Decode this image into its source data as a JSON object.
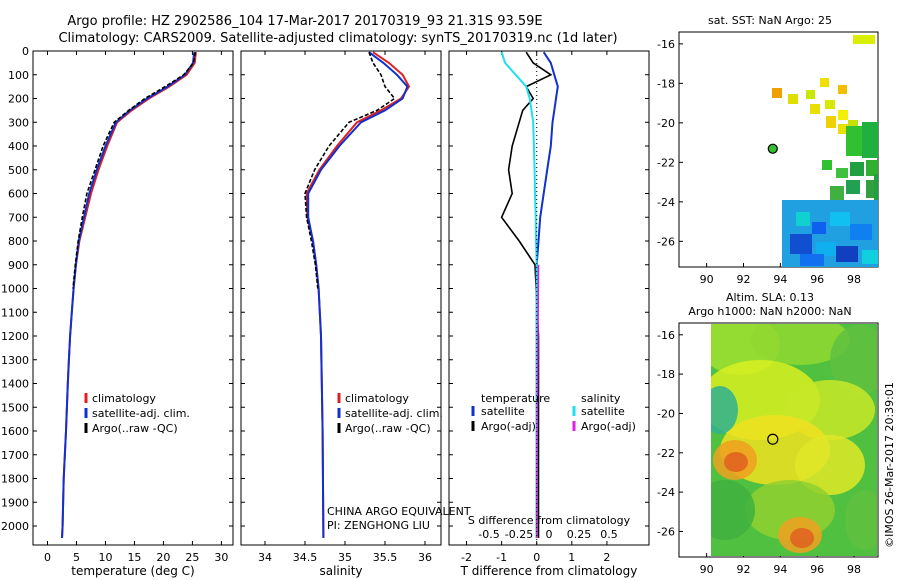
{
  "header": {
    "title_line1": "Argo profile: HZ 2902586_104 17-Mar-2017 20170319_93 21.31S 93.59E",
    "title_line2": "Climatology: CARS2009. Satellite-adjusted climatology: synTS_20170319.nc (1d later)"
  },
  "colors": {
    "climatology": "#e02020",
    "satellite": "#1030d0",
    "argo": "#000000",
    "satellite_cyan": "#20e0f0",
    "argo_adj": "#e020e0"
  },
  "chart_data": [
    {
      "type": "line",
      "name": "temperature",
      "xlabel": "temperature (deg C)",
      "xlim": [
        -2.5,
        32
      ],
      "xticks": [
        0,
        5,
        10,
        15,
        20,
        25,
        30
      ],
      "ylim": [
        2080,
        0
      ],
      "yticks": [
        0,
        100,
        200,
        300,
        400,
        500,
        600,
        700,
        800,
        900,
        1000,
        1100,
        1200,
        1300,
        1400,
        1500,
        1600,
        1700,
        1800,
        1900,
        2000
      ],
      "legend": [
        "climatology",
        "satellite-adj. clim.",
        "Argo(..raw -QC)"
      ],
      "series": [
        {
          "name": "climatology",
          "color": "#e02020",
          "x": [
            25.6,
            25.4,
            24.0,
            21.0,
            17.5,
            14.5,
            12.0,
            10.3,
            8.8,
            7.5,
            6.5,
            5.5,
            4.9,
            4.5,
            4.2,
            3.9,
            3.7,
            3.5,
            3.2,
            2.8,
            2.6,
            2.5
          ],
          "y": [
            5,
            50,
            100,
            150,
            200,
            250,
            300,
            400,
            500,
            600,
            700,
            800,
            900,
            1000,
            1100,
            1200,
            1300,
            1400,
            1600,
            1800,
            2000,
            2050
          ]
        },
        {
          "name": "satellite-adj. clim.",
          "color": "#1030d0",
          "x": [
            25.3,
            25.1,
            23.7,
            20.7,
            17.2,
            14.2,
            11.8,
            10.0,
            8.5,
            7.2,
            6.3,
            5.4,
            4.9,
            4.5,
            4.2,
            3.9,
            3.7,
            3.5,
            3.2,
            2.8,
            2.6,
            2.5
          ],
          "y": [
            5,
            50,
            100,
            150,
            200,
            250,
            300,
            400,
            500,
            600,
            700,
            800,
            900,
            1000,
            1100,
            1200,
            1300,
            1400,
            1600,
            1800,
            2000,
            2050
          ]
        },
        {
          "name": "Argo(..raw -QC)",
          "color": "#000000",
          "x": [
            25.5,
            25.2,
            23.5,
            20.3,
            16.8,
            14.0,
            11.5,
            9.6,
            8.2,
            6.8,
            6.0,
            5.3,
            4.8,
            4.4
          ],
          "y": [
            5,
            50,
            100,
            150,
            200,
            250,
            300,
            400,
            500,
            600,
            700,
            800,
            900,
            1000
          ]
        }
      ]
    },
    {
      "type": "line",
      "name": "salinity",
      "xlabel": "salinity",
      "xlim": [
        33.7,
        36.2
      ],
      "xticks": [
        34,
        34.5,
        35,
        35.5,
        36
      ],
      "xticklabels": [
        "34",
        "34.5",
        "35",
        "35.5",
        "36"
      ],
      "ylim": [
        2080,
        0
      ],
      "legend": [
        "climatology",
        "satellite-adj. clim.",
        "Argo(..raw -QC)"
      ],
      "annotation": [
        "CHINA ARGO EQUIVALENT",
        "PI: ZENGHONG LIU"
      ],
      "series": [
        {
          "name": "climatology",
          "color": "#e02020",
          "x": [
            35.35,
            35.55,
            35.72,
            35.8,
            35.7,
            35.45,
            35.15,
            34.9,
            34.68,
            34.52,
            34.53,
            34.6,
            34.64,
            34.67,
            34.7,
            34.72,
            34.73
          ],
          "y": [
            5,
            50,
            100,
            150,
            200,
            250,
            300,
            400,
            500,
            600,
            700,
            800,
            900,
            1000,
            1200,
            1600,
            2050
          ]
        },
        {
          "name": "satellite-adj. clim.",
          "color": "#1030d0",
          "x": [
            35.3,
            35.48,
            35.65,
            35.78,
            35.72,
            35.5,
            35.2,
            34.93,
            34.7,
            34.54,
            34.54,
            34.6,
            34.64,
            34.67,
            34.7,
            34.72,
            34.73
          ],
          "y": [
            5,
            50,
            100,
            150,
            200,
            250,
            300,
            400,
            500,
            600,
            700,
            800,
            900,
            1000,
            1200,
            1600,
            2050
          ]
        },
        {
          "name": "Argo(..raw -QC)",
          "color": "#000000",
          "x": [
            35.3,
            35.35,
            35.45,
            35.5,
            35.62,
            35.4,
            35.05,
            34.8,
            34.62,
            34.5,
            34.52,
            34.58,
            34.63,
            34.66
          ],
          "y": [
            5,
            50,
            100,
            150,
            200,
            250,
            300,
            400,
            500,
            600,
            700,
            800,
            900,
            1000
          ]
        }
      ]
    },
    {
      "type": "line",
      "name": "differences",
      "xlabel": "T difference from climatology",
      "xlabel_top": "S difference from climatology",
      "xlim": [
        -2.5,
        3.2
      ],
      "xticks": [
        -2,
        -1,
        0,
        1,
        2
      ],
      "xticks_top": [
        -0.5,
        -0.25,
        0,
        0.25,
        0.5
      ],
      "xticks_top_labels": [
        "-0.5",
        "-0.25",
        "0",
        "0.25",
        "0.5"
      ],
      "ylim": [
        2080,
        0
      ],
      "legend_temperature_title": "temperature",
      "legend_salinity_title": "salinity",
      "legend_temperature": [
        "satellite",
        "Argo(-adj)"
      ],
      "legend_salinity": [
        "satellite",
        "Argo(-adj)"
      ],
      "series": [
        {
          "name": "T satellite",
          "color": "#1030d0",
          "x": [
            0.2,
            0.4,
            0.5,
            0.6,
            0.55,
            0.5,
            0.45,
            0.4,
            0.3,
            0.2,
            0.1,
            0.05,
            0,
            0,
            0
          ],
          "y": [
            5,
            50,
            100,
            150,
            200,
            250,
            300,
            400,
            500,
            600,
            700,
            800,
            900,
            1200,
            2050
          ]
        },
        {
          "name": "T Argo(-adj)",
          "color": "#000000",
          "x": [
            -0.3,
            -0.1,
            0.4,
            -0.3,
            -0.1,
            -0.4,
            -0.5,
            -0.7,
            -0.8,
            -0.7,
            -1.0,
            -0.5,
            -0.05,
            0.05,
            0.05
          ],
          "y": [
            5,
            50,
            100,
            150,
            200,
            250,
            300,
            400,
            500,
            600,
            700,
            800,
            900,
            1200,
            2050
          ]
        },
        {
          "name": "S satellite",
          "color": "#20e0f0",
          "x": [
            -1.0,
            -0.9,
            -0.6,
            -0.3,
            -0.2,
            -0.15,
            -0.1,
            -0.08,
            -0.06,
            -0.05,
            -0.03,
            -0.02,
            0,
            0,
            0
          ],
          "y": [
            5,
            50,
            100,
            150,
            200,
            250,
            300,
            400,
            500,
            600,
            700,
            800,
            900,
            1200,
            2050
          ]
        },
        {
          "name": "S Argo(-adj)",
          "color": "#e020e0",
          "x": [
            0.05,
            0.02,
            0
          ],
          "y": [
            900,
            1500,
            2050
          ]
        }
      ]
    },
    {
      "type": "heatmap",
      "name": "sat_sst",
      "title": "sat. SST: NaN Argo: 25",
      "xlim": [
        88.5,
        99.3
      ],
      "ylim": [
        -27.3,
        -15.4
      ],
      "xticks": [
        90,
        92,
        94,
        96,
        98
      ],
      "yticks": [
        -16,
        -18,
        -20,
        -22,
        -24,
        -26
      ],
      "argo_position": [
        93.59,
        -21.31
      ]
    },
    {
      "type": "heatmap",
      "name": "altimetry_sla",
      "title_line1": "Altim. SLA: 0.13",
      "title_line2": "Argo h1000: NaN h2000: NaN",
      "xlim": [
        88.5,
        99.3
      ],
      "ylim": [
        -27.3,
        -15.4
      ],
      "xticks": [
        90,
        92,
        94,
        96,
        98
      ],
      "yticks": [
        -16,
        -18,
        -20,
        -22,
        -24,
        -26
      ],
      "argo_position": [
        93.59,
        -21.31
      ]
    }
  ],
  "footer": {
    "stamp": "©IMOS 26-Mar-2017 20:39:01"
  }
}
